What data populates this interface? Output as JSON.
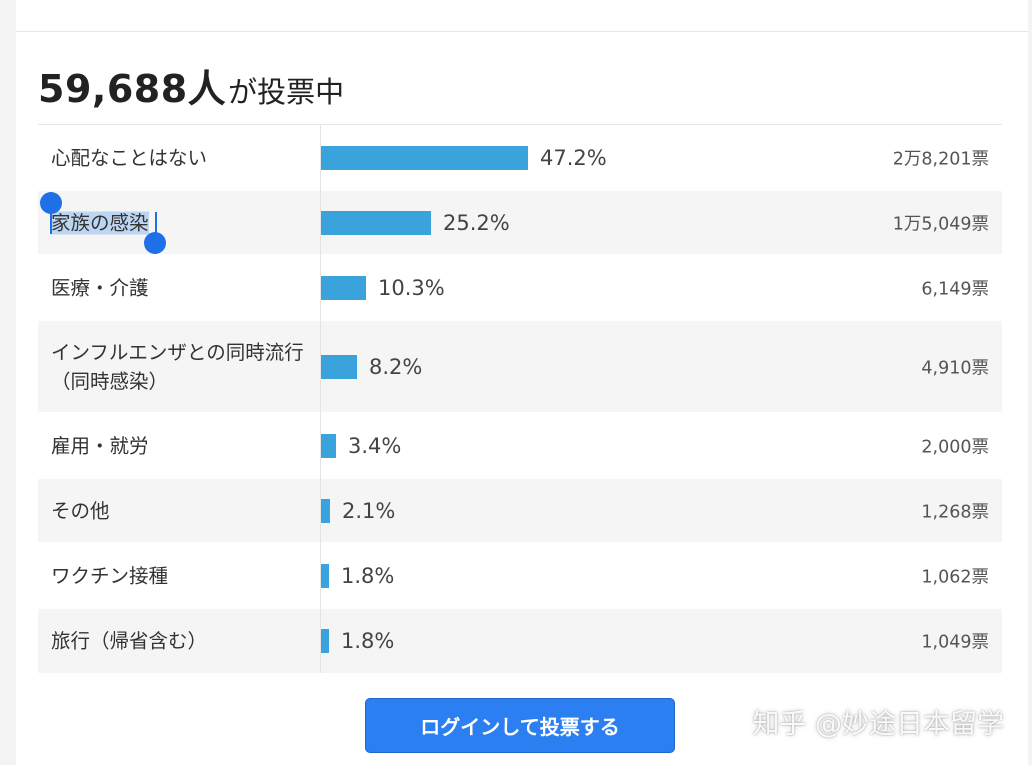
{
  "poll": {
    "count": "59,688人",
    "count_suffix": "が投票中"
  },
  "chart_data": {
    "type": "bar",
    "orientation": "horizontal",
    "categories": [
      "心配なことはない",
      "家族の感染",
      "医療・介護",
      "インフルエンザとの同時流行（同時感染）",
      "雇用・就労",
      "その他",
      "ワクチン接種",
      "旅行（帰省含む）"
    ],
    "values": [
      47.2,
      25.2,
      10.3,
      8.2,
      3.4,
      2.1,
      1.8,
      1.8
    ],
    "unit": "%",
    "xlim": [
      0,
      100
    ],
    "rows": [
      {
        "label": "心配なことはない",
        "value": 47.2,
        "pct_label": "47.2%",
        "votes": "2万8,201票",
        "selected": false
      },
      {
        "label": "家族の感染",
        "value": 25.2,
        "pct_label": "25.2%",
        "votes": "1万5,049票",
        "selected": true
      },
      {
        "label": "医療・介護",
        "value": 10.3,
        "pct_label": "10.3%",
        "votes": "6,149票",
        "selected": false
      },
      {
        "label": "インフルエンザとの同時流行（同時感染）",
        "value": 8.2,
        "pct_label": "8.2%",
        "votes": "4,910票",
        "selected": false
      },
      {
        "label": "雇用・就労",
        "value": 3.4,
        "pct_label": "3.4%",
        "votes": "2,000票",
        "selected": false
      },
      {
        "label": "その他",
        "value": 2.1,
        "pct_label": "2.1%",
        "votes": "1,268票",
        "selected": false
      },
      {
        "label": "ワクチン接種",
        "value": 1.8,
        "pct_label": "1.8%",
        "votes": "1,062票",
        "selected": false
      },
      {
        "label": "旅行（帰省含む）",
        "value": 1.8,
        "pct_label": "1.8%",
        "votes": "1,049票",
        "selected": false
      }
    ],
    "bar_color": "#3aa3dc"
  },
  "login_button": {
    "label": "ログインして投票する"
  },
  "watermark": "知乎 @妙途日本留学",
  "colors": {
    "bar": "#3aa3dc",
    "button": "#2b7ff0",
    "selection": "#bcd6f2",
    "selection_handle": "#1f6fe6"
  }
}
